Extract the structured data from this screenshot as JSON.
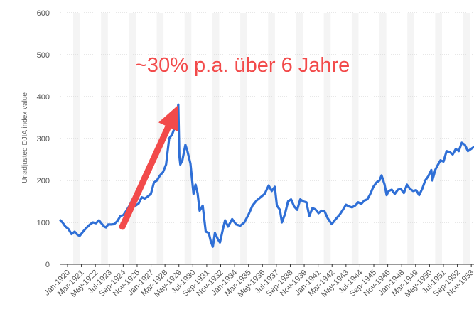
{
  "chart_data": {
    "type": "line",
    "ylabel": "Unadjusted DJIA index value",
    "ylim": [
      0,
      600
    ],
    "yticks": [
      "0",
      "100",
      "200",
      "300",
      "400",
      "500",
      "600"
    ],
    "x_tick_labels": [
      "Jan-1920",
      "Mar-1921",
      "May-1922",
      "Jul-1923",
      "Sep-1924",
      "Nov-1925",
      "Jan-1927",
      "Mar-1928",
      "May-1929",
      "Jul-1930",
      "Sep-1931",
      "Nov-1932",
      "Jan-1934",
      "Mar-1935",
      "May-1936",
      "Jul-1937",
      "Sep-1938",
      "Nov-1939",
      "Jan-1941",
      "Mar-1942",
      "May-1943",
      "Jul-1944",
      "Sep-1945",
      "Nov-1946",
      "Jan-1948",
      "Mar-1949",
      "May-1950",
      "Jul-1951",
      "Sep-1952",
      "Nov-1953"
    ],
    "x_start": "1920-01",
    "x_end": "1953-12",
    "grid": true,
    "series": [
      {
        "color": "#2f6fd6",
        "points": [
          [
            "1920-01",
            105
          ],
          [
            "1920-03",
            100
          ],
          [
            "1920-06",
            90
          ],
          [
            "1920-09",
            84
          ],
          [
            "1920-12",
            72
          ],
          [
            "1921-03",
            78
          ],
          [
            "1921-06",
            70
          ],
          [
            "1921-08",
            68
          ],
          [
            "1921-12",
            80
          ],
          [
            "1922-03",
            88
          ],
          [
            "1922-06",
            95
          ],
          [
            "1922-09",
            100
          ],
          [
            "1922-12",
            98
          ],
          [
            "1923-03",
            105
          ],
          [
            "1923-06",
            96
          ],
          [
            "1923-08",
            90
          ],
          [
            "1923-10",
            88
          ],
          [
            "1923-12",
            95
          ],
          [
            "1924-03",
            95
          ],
          [
            "1924-06",
            96
          ],
          [
            "1924-09",
            103
          ],
          [
            "1924-12",
            115
          ],
          [
            "1925-03",
            118
          ],
          [
            "1925-06",
            128
          ],
          [
            "1925-09",
            140
          ],
          [
            "1925-12",
            155
          ],
          [
            "1926-03",
            140
          ],
          [
            "1926-06",
            145
          ],
          [
            "1926-09",
            160
          ],
          [
            "1926-12",
            157
          ],
          [
            "1927-03",
            162
          ],
          [
            "1927-06",
            168
          ],
          [
            "1927-09",
            195
          ],
          [
            "1927-12",
            200
          ],
          [
            "1928-03",
            212
          ],
          [
            "1928-06",
            220
          ],
          [
            "1928-09",
            238
          ],
          [
            "1928-12",
            300
          ],
          [
            "1929-03",
            310
          ],
          [
            "1929-06",
            330
          ],
          [
            "1929-09",
            381
          ],
          [
            "1929-10",
            260
          ],
          [
            "1929-11",
            238
          ],
          [
            "1930-01",
            248
          ],
          [
            "1930-04",
            285
          ],
          [
            "1930-06",
            270
          ],
          [
            "1930-09",
            240
          ],
          [
            "1930-12",
            168
          ],
          [
            "1931-02",
            190
          ],
          [
            "1931-04",
            170
          ],
          [
            "1931-06",
            128
          ],
          [
            "1931-09",
            140
          ],
          [
            "1931-12",
            78
          ],
          [
            "1932-03",
            75
          ],
          [
            "1932-05",
            55
          ],
          [
            "1932-07",
            42
          ],
          [
            "1932-09",
            75
          ],
          [
            "1932-12",
            60
          ],
          [
            "1933-02",
            52
          ],
          [
            "1933-05",
            85
          ],
          [
            "1933-07",
            105
          ],
          [
            "1933-10",
            90
          ],
          [
            "1934-02",
            108
          ],
          [
            "1934-06",
            95
          ],
          [
            "1934-10",
            92
          ],
          [
            "1935-02",
            100
          ],
          [
            "1935-06",
            118
          ],
          [
            "1935-10",
            140
          ],
          [
            "1936-02",
            152
          ],
          [
            "1936-06",
            160
          ],
          [
            "1936-10",
            168
          ],
          [
            "1937-02",
            188
          ],
          [
            "1937-05",
            175
          ],
          [
            "1937-08",
            185
          ],
          [
            "1937-10",
            140
          ],
          [
            "1938-01",
            130
          ],
          [
            "1938-03",
            100
          ],
          [
            "1938-06",
            120
          ],
          [
            "1938-09",
            150
          ],
          [
            "1938-12",
            155
          ],
          [
            "1939-03",
            138
          ],
          [
            "1939-06",
            130
          ],
          [
            "1939-09",
            155
          ],
          [
            "1939-12",
            150
          ],
          [
            "1940-03",
            148
          ],
          [
            "1940-06",
            115
          ],
          [
            "1940-09",
            134
          ],
          [
            "1940-12",
            131
          ],
          [
            "1941-03",
            122
          ],
          [
            "1941-06",
            128
          ],
          [
            "1941-09",
            126
          ],
          [
            "1941-12",
            110
          ],
          [
            "1942-04",
            96
          ],
          [
            "1942-08",
            108
          ],
          [
            "1942-12",
            119
          ],
          [
            "1943-03",
            130
          ],
          [
            "1943-06",
            142
          ],
          [
            "1943-09",
            138
          ],
          [
            "1943-12",
            136
          ],
          [
            "1944-03",
            140
          ],
          [
            "1944-06",
            148
          ],
          [
            "1944-09",
            144
          ],
          [
            "1944-12",
            152
          ],
          [
            "1945-03",
            155
          ],
          [
            "1945-06",
            168
          ],
          [
            "1945-09",
            185
          ],
          [
            "1945-12",
            195
          ],
          [
            "1946-03",
            200
          ],
          [
            "1946-05",
            212
          ],
          [
            "1946-08",
            190
          ],
          [
            "1946-10",
            165
          ],
          [
            "1946-12",
            175
          ],
          [
            "1947-03",
            178
          ],
          [
            "1947-06",
            168
          ],
          [
            "1947-09",
            178
          ],
          [
            "1947-12",
            180
          ],
          [
            "1948-03",
            170
          ],
          [
            "1948-06",
            190
          ],
          [
            "1948-09",
            180
          ],
          [
            "1948-12",
            175
          ],
          [
            "1949-03",
            177
          ],
          [
            "1949-06",
            165
          ],
          [
            "1949-09",
            180
          ],
          [
            "1949-12",
            200
          ],
          [
            "1950-03",
            210
          ],
          [
            "1950-06",
            225
          ],
          [
            "1950-07",
            200
          ],
          [
            "1950-10",
            226
          ],
          [
            "1950-12",
            235
          ],
          [
            "1951-03",
            248
          ],
          [
            "1951-06",
            245
          ],
          [
            "1951-09",
            270
          ],
          [
            "1951-12",
            268
          ],
          [
            "1952-03",
            262
          ],
          [
            "1952-06",
            275
          ],
          [
            "1952-09",
            270
          ],
          [
            "1952-12",
            290
          ],
          [
            "1953-03",
            285
          ],
          [
            "1953-06",
            270
          ],
          [
            "1953-12",
            280
          ]
        ]
      }
    ],
    "annotation": {
      "text": "~30% p.a. über 6 Jahre",
      "color": "#f24a4a",
      "arrow_from": [
        "1925-02",
        90
      ],
      "arrow_to": [
        "1929-09",
        380
      ]
    }
  }
}
